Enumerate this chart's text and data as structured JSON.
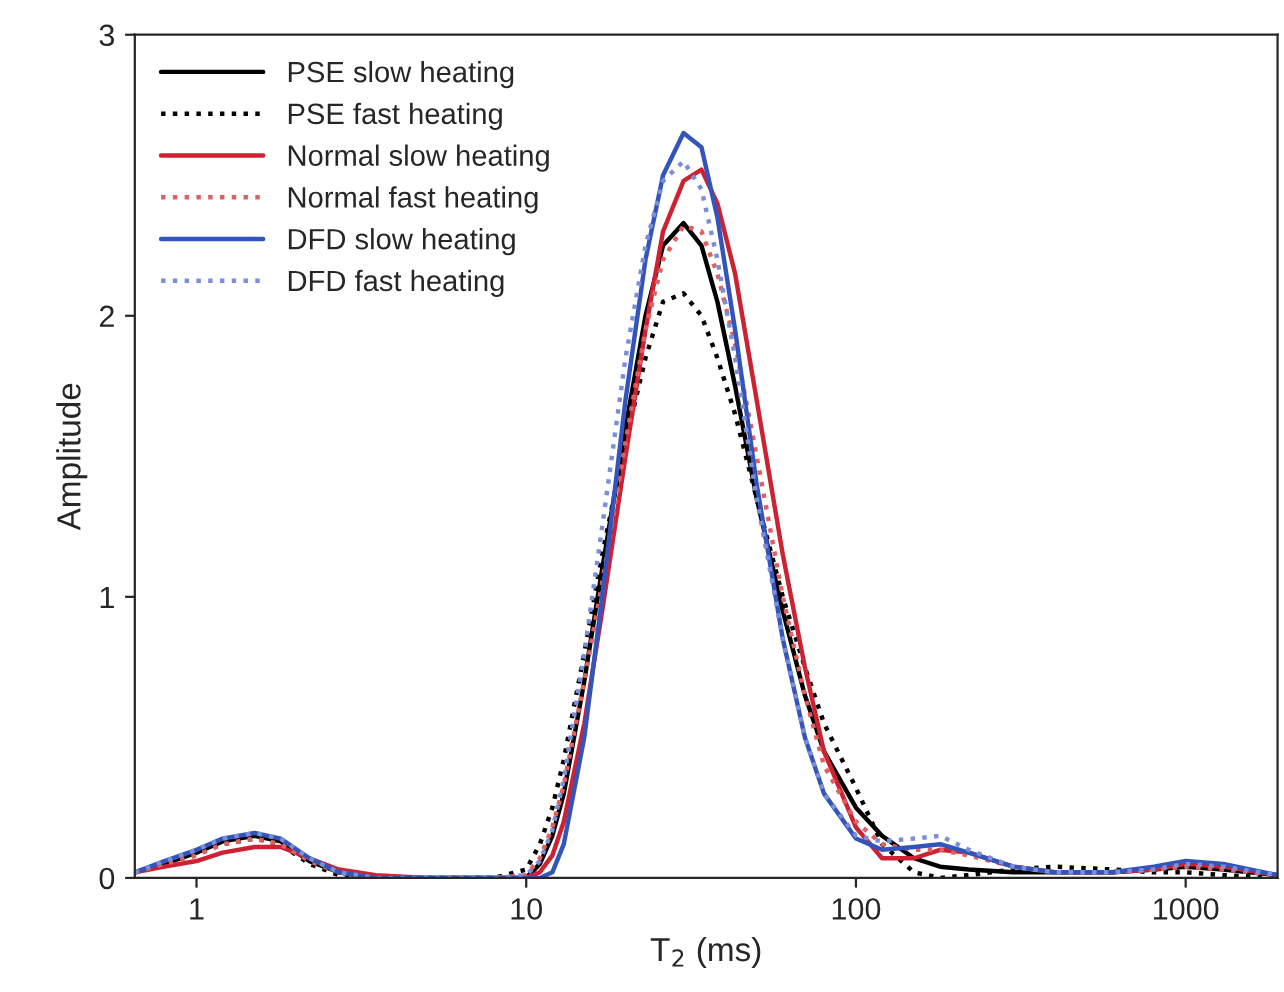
{
  "chart_data": {
    "type": "line",
    "xlabel": "T$_{2}$ (ms)",
    "ylabel": "Amplitude",
    "x": [
      0.65,
      0.8,
      1,
      1.2,
      1.5,
      1.8,
      2.2,
      2.7,
      3.5,
      5,
      8,
      10,
      11,
      12,
      13,
      15,
      17,
      20,
      23,
      26,
      30,
      34,
      38,
      43,
      50,
      60,
      70,
      80,
      100,
      120,
      150,
      180,
      220,
      300,
      400,
      600,
      800,
      1000,
      1300,
      1900
    ],
    "series": [
      {
        "name": "PSE slow heating",
        "color": "#000000",
        "line_style": "solid",
        "values": [
          0.02,
          0.05,
          0.09,
          0.13,
          0.15,
          0.13,
          0.06,
          0.02,
          0,
          0,
          0,
          0,
          0.05,
          0.15,
          0.3,
          0.7,
          1.1,
          1.6,
          2.0,
          2.25,
          2.33,
          2.25,
          2.05,
          1.75,
          1.35,
          0.95,
          0.65,
          0.45,
          0.25,
          0.15,
          0.07,
          0.04,
          0.03,
          0.02,
          0.02,
          0.02,
          0.03,
          0.04,
          0.03,
          0.01
        ]
      },
      {
        "name": "PSE fast heating",
        "color": "#000000",
        "line_style": "dotted",
        "values": [
          0.02,
          0.05,
          0.09,
          0.12,
          0.14,
          0.12,
          0.05,
          0.01,
          0,
          0,
          0,
          0.03,
          0.12,
          0.25,
          0.42,
          0.8,
          1.15,
          1.55,
          1.85,
          2.05,
          2.08,
          2.0,
          1.85,
          1.65,
          1.35,
          1.0,
          0.75,
          0.55,
          0.32,
          0.12,
          0.02,
          0,
          0.01,
          0.03,
          0.04,
          0.03,
          0.02,
          0.02,
          0.01,
          0
        ]
      },
      {
        "name": "Normal slow heating",
        "color": "#cc2233",
        "line_style": "solid",
        "values": [
          0.02,
          0.04,
          0.06,
          0.09,
          0.11,
          0.11,
          0.07,
          0.03,
          0.01,
          0,
          0,
          0,
          0.02,
          0.08,
          0.2,
          0.55,
          0.95,
          1.5,
          1.95,
          2.3,
          2.48,
          2.52,
          2.4,
          2.15,
          1.7,
          1.15,
          0.75,
          0.45,
          0.18,
          0.07,
          0.07,
          0.1,
          0.09,
          0.04,
          0.02,
          0.02,
          0.03,
          0.05,
          0.04,
          0.01
        ]
      },
      {
        "name": "Normal fast heating",
        "color": "#e06060",
        "line_style": "dotted",
        "values": [
          0.02,
          0.05,
          0.08,
          0.12,
          0.14,
          0.12,
          0.06,
          0.02,
          0,
          0,
          0,
          0.01,
          0.07,
          0.18,
          0.33,
          0.7,
          1.05,
          1.55,
          1.95,
          2.2,
          2.32,
          2.3,
          2.15,
          1.9,
          1.5,
          1.0,
          0.65,
          0.4,
          0.2,
          0.12,
          0.1,
          0.1,
          0.08,
          0.04,
          0.02,
          0.02,
          0.03,
          0.04,
          0.03,
          0.01
        ]
      },
      {
        "name": "DFD slow heating",
        "color": "#3355bb",
        "line_style": "solid",
        "values": [
          0.02,
          0.06,
          0.1,
          0.14,
          0.16,
          0.14,
          0.07,
          0.02,
          0,
          0,
          0,
          0,
          0,
          0.02,
          0.12,
          0.5,
          1.0,
          1.7,
          2.2,
          2.5,
          2.65,
          2.6,
          2.35,
          1.95,
          1.4,
          0.85,
          0.5,
          0.3,
          0.14,
          0.1,
          0.11,
          0.12,
          0.09,
          0.04,
          0.02,
          0.02,
          0.04,
          0.06,
          0.05,
          0.01
        ]
      },
      {
        "name": "DFD fast heating",
        "color": "#7b8fd8",
        "line_style": "dotted",
        "values": [
          0.02,
          0.06,
          0.1,
          0.14,
          0.16,
          0.14,
          0.07,
          0.02,
          0,
          0,
          0,
          0.01,
          0.06,
          0.17,
          0.35,
          0.8,
          1.25,
          1.85,
          2.25,
          2.48,
          2.55,
          2.45,
          2.2,
          1.85,
          1.35,
          0.85,
          0.5,
          0.3,
          0.15,
          0.13,
          0.14,
          0.15,
          0.1,
          0.04,
          0.02,
          0.02,
          0.03,
          0.05,
          0.04,
          0.01
        ]
      }
    ],
    "log": "x",
    "xlim": [
      0.65,
      1900
    ],
    "xticks": [
      1,
      10,
      100,
      1000
    ],
    "ylim": [
      0,
      3
    ],
    "yticks": [
      0,
      1,
      2,
      3
    ],
    "grid": false,
    "legend": "top left"
  }
}
